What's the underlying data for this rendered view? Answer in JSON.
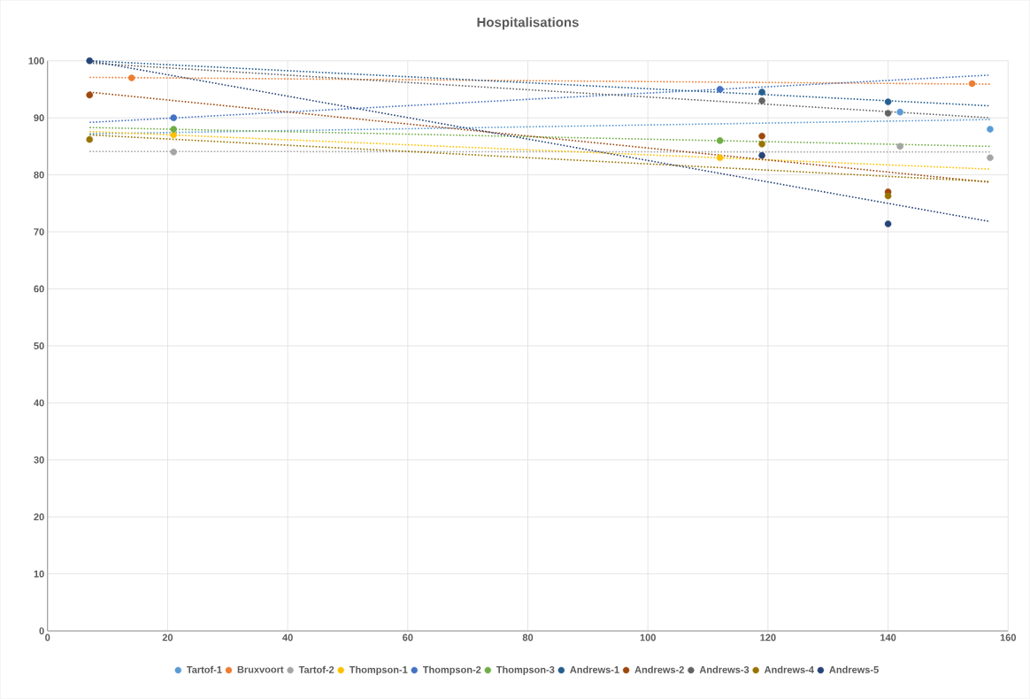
{
  "chart_data": {
    "type": "scatter",
    "title": "Hospitalisations",
    "xlim": [
      0,
      160
    ],
    "ylim": [
      0,
      100
    ],
    "xticks": [
      0,
      20,
      40,
      60,
      80,
      100,
      120,
      140,
      160
    ],
    "yticks": [
      0,
      10,
      20,
      30,
      40,
      50,
      60,
      70,
      80,
      90,
      100
    ],
    "grid": true,
    "legend": "bottom",
    "marker": "circle",
    "series": [
      {
        "name": "Tartof-1",
        "color": "#5b9bd5",
        "x": [
          142,
          157
        ],
        "values": [
          91,
          88
        ]
      },
      {
        "name": "Bruxvoort",
        "color": "#ed7d31",
        "x": [
          14,
          154
        ],
        "values": [
          97,
          96
        ]
      },
      {
        "name": "Tartof-2",
        "color": "#a5a5a5",
        "x": [
          21,
          142,
          157
        ],
        "values": [
          84,
          85,
          83
        ]
      },
      {
        "name": "Thompson-1",
        "color": "#ffc000",
        "x": [
          21,
          112
        ],
        "values": [
          87,
          83
        ]
      },
      {
        "name": "Thompson-2",
        "color": "#4472c4",
        "x": [
          21,
          112
        ],
        "values": [
          90,
          95
        ]
      },
      {
        "name": "Thompson-3",
        "color": "#70ad47",
        "x": [
          21,
          112
        ],
        "values": [
          88,
          86
        ]
      },
      {
        "name": "Andrews-1",
        "color": "#255e91",
        "x": [
          119,
          140
        ],
        "values": [
          94.5,
          92.8
        ]
      },
      {
        "name": "Andrews-2",
        "color": "#9e480e",
        "x": [
          7,
          119,
          140
        ],
        "values": [
          94,
          86.8,
          77
        ]
      },
      {
        "name": "Andrews-3",
        "color": "#636363",
        "x": [
          119,
          140
        ],
        "values": [
          93,
          90.8
        ]
      },
      {
        "name": "Andrews-4",
        "color": "#997300",
        "x": [
          7,
          119,
          140
        ],
        "values": [
          86.2,
          85.4,
          76.3
        ]
      },
      {
        "name": "Andrews-5",
        "color": "#264478",
        "x": [
          7,
          119,
          140
        ],
        "values": [
          100,
          83.4,
          71.4
        ]
      },
      {
        "type": "line",
        "marker": "none",
        "line_style": "dotted",
        "color": "#5b9bd5",
        "x": [
          7,
          157
        ],
        "values": [
          87.2,
          89.7
        ]
      },
      {
        "type": "line",
        "marker": "none",
        "line_style": "dotted",
        "color": "#ed7d31",
        "x": [
          7,
          157
        ],
        "values": [
          97.1,
          95.9
        ]
      },
      {
        "type": "line",
        "marker": "none",
        "line_style": "dotted",
        "color": "#a5a5a5",
        "x": [
          7,
          157
        ],
        "values": [
          84.1,
          84
        ]
      },
      {
        "type": "line",
        "marker": "none",
        "line_style": "dotted",
        "color": "#ffc000",
        "x": [
          7,
          157
        ],
        "values": [
          87.6,
          81
        ]
      },
      {
        "type": "line",
        "marker": "none",
        "line_style": "dotted",
        "color": "#4472c4",
        "x": [
          7,
          157
        ],
        "values": [
          89.2,
          97.5
        ]
      },
      {
        "type": "line",
        "marker": "none",
        "line_style": "dotted",
        "color": "#70ad47",
        "x": [
          7,
          157
        ],
        "values": [
          88.3,
          85
        ]
      },
      {
        "type": "line",
        "marker": "none",
        "line_style": "dotted",
        "color": "#255e91",
        "x": [
          7,
          157
        ],
        "values": [
          100,
          92.1
        ]
      },
      {
        "type": "line",
        "marker": "none",
        "line_style": "dotted",
        "color": "#9e480e",
        "x": [
          7,
          157
        ],
        "values": [
          94.5,
          78.7
        ]
      },
      {
        "type": "line",
        "marker": "none",
        "line_style": "dotted",
        "color": "#636363",
        "x": [
          7,
          157
        ],
        "values": [
          99.6,
          90
        ]
      },
      {
        "type": "line",
        "marker": "none",
        "line_style": "dotted",
        "color": "#997300",
        "x": [
          7,
          157
        ],
        "values": [
          87,
          78.8
        ]
      },
      {
        "type": "line",
        "marker": "none",
        "line_style": "dotted",
        "color": "#264478",
        "x": [
          7,
          157
        ],
        "values": [
          100,
          71.8
        ]
      }
    ]
  }
}
